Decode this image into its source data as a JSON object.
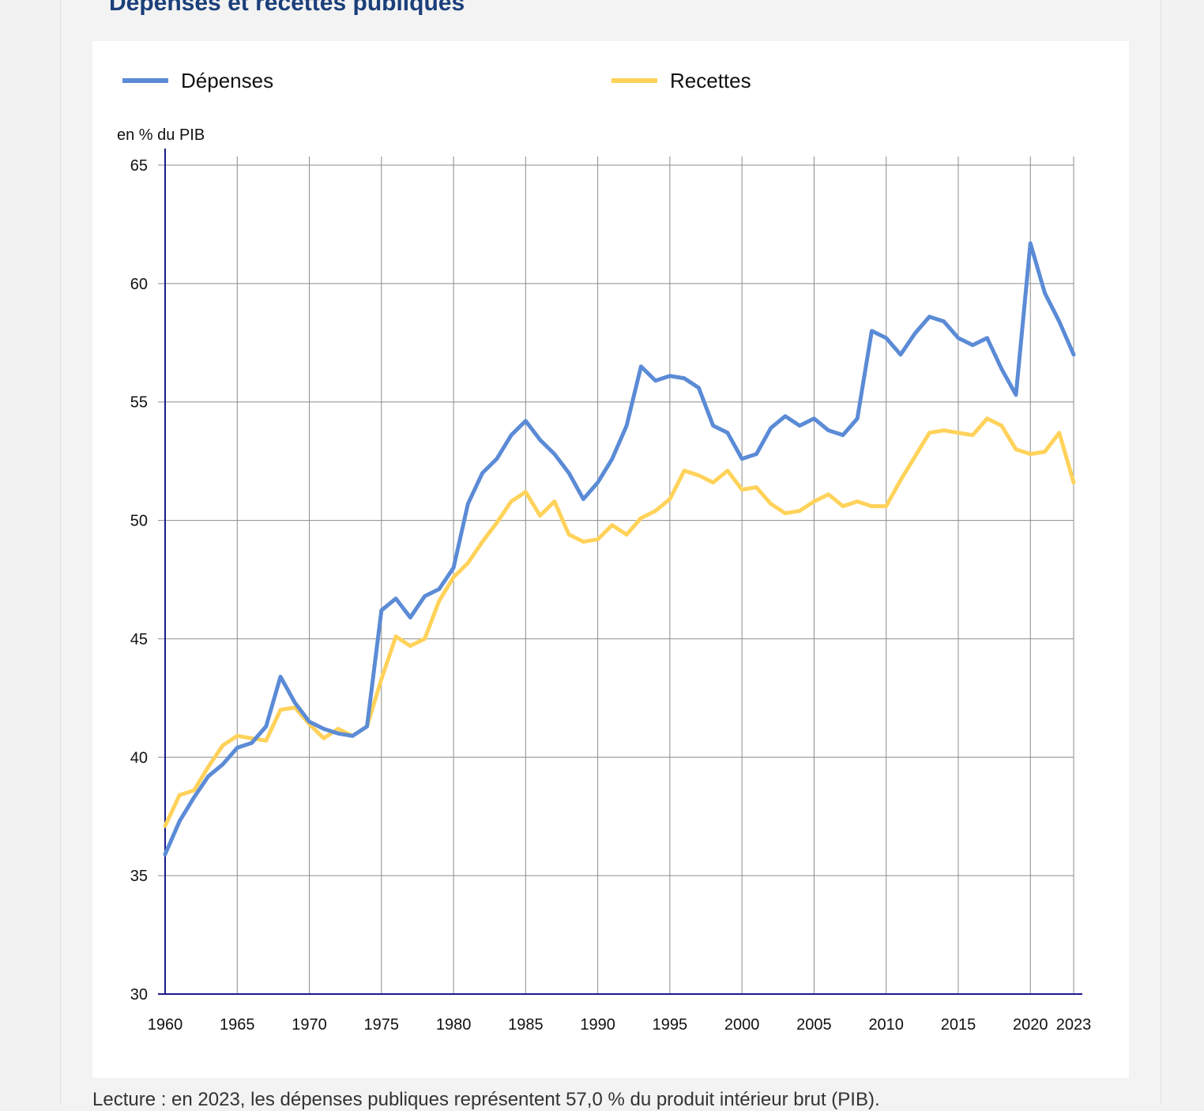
{
  "title": "Dépenses et recettes publiques",
  "note": "Lecture : en 2023, les dépenses publiques représentent 57,0 % du produit intérieur brut (PIB).",
  "colors": {
    "depenses": "#5b8bd6",
    "recettes": "#ffd25a",
    "axis": "#1a1a8c",
    "grid": "#8c8c8c"
  },
  "chart_data": {
    "type": "line",
    "ylabel": "en % du PIB",
    "xlabel": "",
    "ylim": [
      30,
      65
    ],
    "xlim": [
      1960,
      2023
    ],
    "yticks": [
      30,
      35,
      40,
      45,
      50,
      55,
      60,
      65
    ],
    "xticks": [
      1960,
      1965,
      1970,
      1975,
      1980,
      1985,
      1990,
      1995,
      2000,
      2005,
      2010,
      2015,
      2020,
      2023
    ],
    "grid": true,
    "legend": "top",
    "x": [
      1960,
      1961,
      1962,
      1963,
      1964,
      1965,
      1966,
      1967,
      1968,
      1969,
      1970,
      1971,
      1972,
      1973,
      1974,
      1975,
      1976,
      1977,
      1978,
      1979,
      1980,
      1981,
      1982,
      1983,
      1984,
      1985,
      1986,
      1987,
      1988,
      1989,
      1990,
      1991,
      1992,
      1993,
      1994,
      1995,
      1996,
      1997,
      1998,
      1999,
      2000,
      2001,
      2002,
      2003,
      2004,
      2005,
      2006,
      2007,
      2008,
      2009,
      2010,
      2011,
      2012,
      2013,
      2014,
      2015,
      2016,
      2017,
      2018,
      2019,
      2020,
      2021,
      2022,
      2023
    ],
    "series": [
      {
        "name": "Dépenses",
        "values": [
          35.9,
          37.3,
          38.3,
          39.2,
          39.7,
          40.4,
          40.6,
          41.3,
          43.4,
          42.3,
          41.5,
          41.2,
          41.0,
          40.9,
          41.3,
          46.2,
          46.7,
          45.9,
          46.8,
          47.1,
          48.0,
          50.7,
          52.0,
          52.6,
          53.6,
          54.2,
          53.4,
          52.8,
          52.0,
          50.9,
          51.6,
          52.6,
          54.0,
          56.5,
          55.9,
          56.1,
          56.0,
          55.6,
          54.0,
          53.7,
          52.6,
          52.8,
          53.9,
          54.4,
          54.0,
          54.3,
          53.8,
          53.6,
          54.3,
          58.0,
          57.7,
          57.0,
          57.9,
          58.6,
          58.4,
          57.7,
          57.4,
          57.7,
          56.4,
          55.3,
          61.7,
          59.6,
          58.4,
          57.0
        ]
      },
      {
        "name": "Recettes",
        "values": [
          37.1,
          38.4,
          38.6,
          39.6,
          40.5,
          40.9,
          40.8,
          40.7,
          42.0,
          42.1,
          41.4,
          40.8,
          41.2,
          40.9,
          41.3,
          43.3,
          45.1,
          44.7,
          45.0,
          46.6,
          47.6,
          48.2,
          49.1,
          49.9,
          50.8,
          51.2,
          50.2,
          50.8,
          49.4,
          49.1,
          49.2,
          49.8,
          49.4,
          50.1,
          50.4,
          50.9,
          52.1,
          51.9,
          51.6,
          52.1,
          51.3,
          51.4,
          50.7,
          50.3,
          50.4,
          50.8,
          51.1,
          50.6,
          50.8,
          50.6,
          50.6,
          51.7,
          52.7,
          53.7,
          53.8,
          53.7,
          53.6,
          54.3,
          54.0,
          53.0,
          52.8,
          52.9,
          53.7,
          51.6
        ]
      }
    ]
  }
}
